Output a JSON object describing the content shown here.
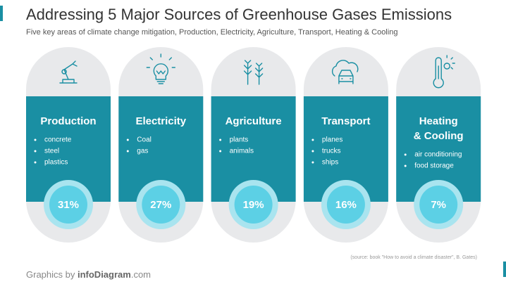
{
  "header": {
    "title": "Addressing 5 Major Sources of Greenhouse Gases Emissions",
    "subtitle": "Five key areas of climate change mitigation, Production, Electricity, Agriculture, Transport, Heating & Cooling"
  },
  "cards": [
    {
      "title_lines": [
        "Production"
      ],
      "items": [
        "concrete",
        "steel",
        "plastics"
      ],
      "share": "31%"
    },
    {
      "title_lines": [
        "Electricity"
      ],
      "items": [
        "Coal",
        "gas"
      ],
      "share": "27%"
    },
    {
      "title_lines": [
        "Agriculture"
      ],
      "items": [
        "plants",
        "animals"
      ],
      "share": "19%"
    },
    {
      "title_lines": [
        "Transport"
      ],
      "items": [
        "planes",
        "trucks",
        "ships"
      ],
      "share": "16%"
    },
    {
      "title_lines": [
        "Heating",
        "& Cooling"
      ],
      "items": [
        "air conditioning",
        "food storage"
      ],
      "share": "7%"
    }
  ],
  "source": "(source: book \"How to avoid a climate disaster\", B. Gates)",
  "footer": {
    "prefix": "Graphics by ",
    "brand": "infoDiagram",
    "suffix": ".com"
  }
}
